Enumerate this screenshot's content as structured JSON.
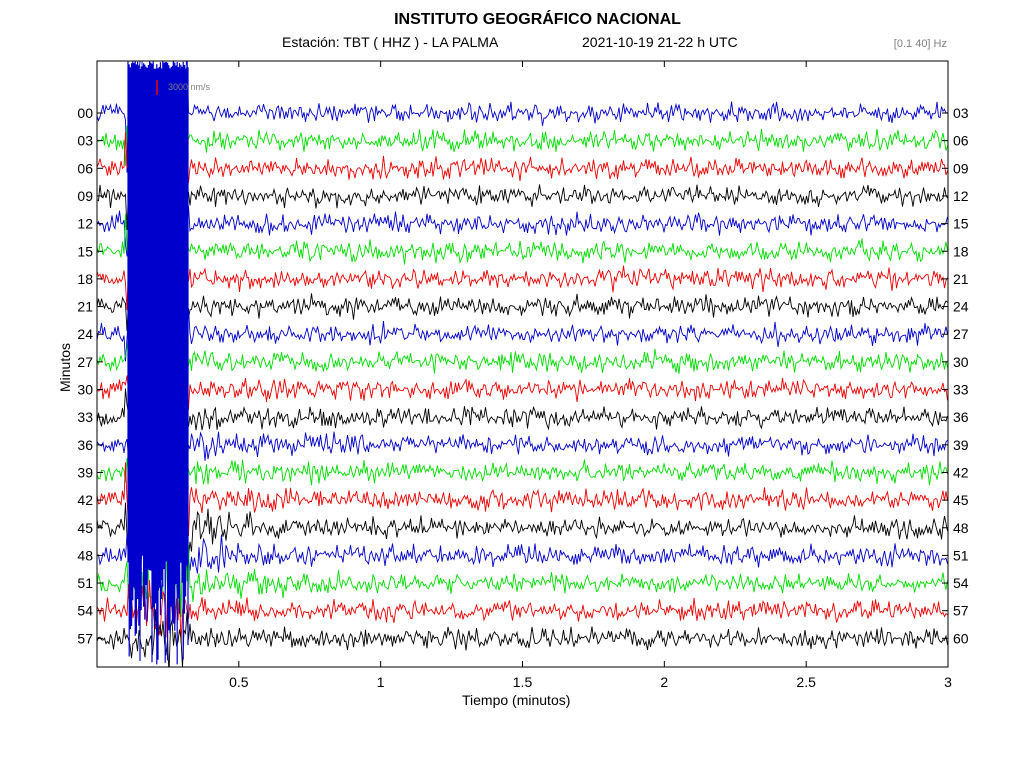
{
  "header": {
    "title": "INSTITUTO GEOGRÁFICO NACIONAL",
    "station_label": "Estación:  TBT ( HHZ ) - LA PALMA",
    "date_label": "2021-10-19  21-22 h UTC",
    "filter_label": "[0.1 40] Hz"
  },
  "chart_data": {
    "type": "line",
    "title": "INSTITUTO GEOGRÁFICO NACIONAL",
    "xlabel": "Tiempo (minutos)",
    "ylabel": "Minutos",
    "xlim": [
      0,
      3
    ],
    "x_ticks": [
      "0.5",
      "1",
      "1.5",
      "2",
      "2.5",
      "3"
    ],
    "x_tick_values": [
      0.5,
      1,
      1.5,
      2,
      2.5,
      3
    ],
    "left_ticks": [
      "00",
      "03",
      "06",
      "09",
      "12",
      "15",
      "18",
      "21",
      "24",
      "27",
      "30",
      "33",
      "36",
      "39",
      "42",
      "45",
      "48",
      "51",
      "54",
      "57"
    ],
    "right_ticks": [
      "03",
      "06",
      "09",
      "12",
      "15",
      "18",
      "21",
      "24",
      "27",
      "30",
      "33",
      "36",
      "39",
      "42",
      "45",
      "48",
      "51",
      "54",
      "57",
      "60"
    ],
    "scale_label": "3000 nm/s",
    "trace_colors": [
      "#0000cc",
      "#00dd00",
      "#ee0000",
      "#000000"
    ],
    "grid": false,
    "legend": "none"
  }
}
